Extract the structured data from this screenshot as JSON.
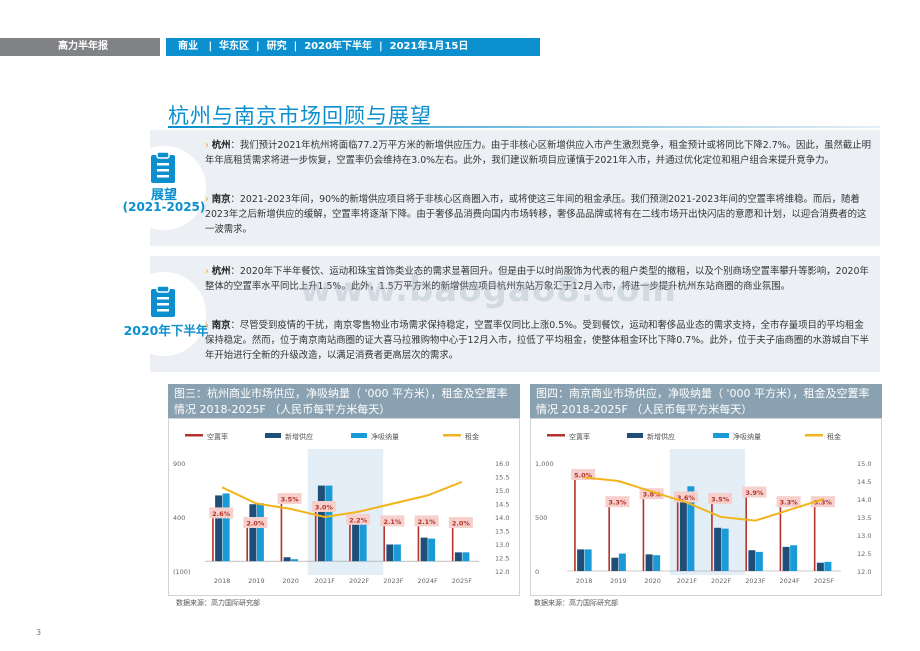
{
  "header": {
    "left": "高力半年报",
    "right": "商业   |  华东区  |  研究  |  2020年下半年  |  2021年1月15日"
  },
  "title": "杭州与南京市场回顾与展望",
  "outlook": {
    "label": "展望",
    "period": "(2021-2025)",
    "p1_city": "杭州",
    "p1_text": "：我们预计2021年杭州将面临77.2万平方米的新增供应压力。由于非核心区新增供应入市产生激烈竞争，租金预计或将同比下降2.7%。因此，虽然截止明年年底租赁需求将进一步恢复，空置率仍会维持在3.0%左右。此外，我们建议新项目应谨慎于2021年入市，并通过优化定位和租户组合来提升竞争力。",
    "p2_city": "南京",
    "p2_text": "：2021-2023年间，90%的新增供应项目将于非核心区商圈入市，或将使这三年间的租金承压。我们预测2021-2023年间的空置率将维稳。而后，随着2023年之后新增供应的缓解，空置率将逐渐下降。由于奢侈品消费向国内市场转移，奢侈品品牌或将有在二线市场开出快闪店的意愿和计划，以迎合消费者的这一波需求。"
  },
  "review": {
    "label": "2020年下半年",
    "p1_city": "杭州",
    "p1_text": "：2020年下半年餐饮、运动和珠宝首饰类业态的需求显著回升。但是由于以时尚服饰为代表的租户类型的撤租，以及个别商场空置率攀升等影响，2020年整体的空置率水平同比上升1.5%。此外，1.5万平方米的新增供应项目杭州东站万象汇于12月入市，将进一步提升杭州东站商圈的商业氛围。",
    "p2_city": "南京",
    "p2_text": "：尽管受到疫情的干扰，南京零售物业市场需求保持稳定，空置率仅同比上涨0.5%。受到餐饮，运动和奢侈品业态的需求支持，全市存量项目的平均租金保持稳定。然而，位于南京南站商圈的证大喜马拉雅购物中心于12月入市，拉低了平均租金，使整体租金环比下降0.7%。此外，位于夫子庙商圈的水游城自下半年开始进行全新的升级改造，以满足消费者更高层次的需求。"
  },
  "watermark": "www.baogao8.com",
  "legend": {
    "vacancy": "空置率",
    "new_supply": "新增供应",
    "net_absorption": "净吸纳量",
    "rent": "租金"
  },
  "colors": {
    "vacancy": "#b5312a",
    "new_supply": "#1f4e79",
    "net_absorption": "#1a9ad6",
    "rent": "#f2b41c",
    "accent": "#0b8fcf"
  },
  "source_note": "数据来源：高力国际研究部",
  "page_number": "3",
  "chart_data": [
    {
      "type": "bar",
      "title": "图三：杭州商业市场供应，净吸纳量（ '000 平方米），租金及空置率情况 2018-2025F （人民币每平方米每天）",
      "categories": [
        "2018",
        "2019",
        "2020",
        "2021F",
        "2022F",
        "2023F",
        "2024F",
        "2025F"
      ],
      "ylim": [
        -100,
        1000
      ],
      "y_ticks": [
        "(100)",
        "400",
        "900"
      ],
      "y2lim": [
        12.0,
        16.0
      ],
      "y2_ticks": [
        "12.0",
        "12.5",
        "13.0",
        "13.5",
        "14.0",
        "14.5",
        "15.0",
        "15.5",
        "16.0"
      ],
      "series": [
        {
          "name": "新增供应",
          "values": [
            670,
            580,
            40,
            770,
            480,
            170,
            240,
            90
          ]
        },
        {
          "name": "净吸纳量",
          "values": [
            690,
            590,
            20,
            770,
            460,
            170,
            230,
            90
          ]
        },
        {
          "name": "空置率",
          "values": [
            2.6,
            2.0,
            3.5,
            3.0,
            2.2,
            2.1,
            2.1,
            2.0
          ],
          "labels": [
            "2.6%",
            "2.0%",
            "3.5%",
            "3.0%",
            "2.2%",
            "2.1%",
            "2.1%",
            "2.0%"
          ]
        },
        {
          "name": "租金",
          "values": [
            15.1,
            14.5,
            14.3,
            14.0,
            14.2,
            14.5,
            14.8,
            15.3
          ]
        }
      ],
      "highlight": "2021F"
    },
    {
      "type": "bar",
      "title": "图四：南京商业市场供应，净吸纳量（ '000 平方米），租金及空置率情况 2018-2025F （人民币每平方米每天）",
      "categories": [
        "2018",
        "2019",
        "2020",
        "2021F",
        "2022F",
        "2023F",
        "2024F",
        "2025F"
      ],
      "ylim": [
        0,
        1300
      ],
      "y_ticks": [
        "0",
        "500",
        "1,000"
      ],
      "y2lim": [
        12.0,
        15.0
      ],
      "y2_ticks": [
        "12.0",
        "12.5",
        "13.0",
        "13.5",
        "14.0",
        "14.5",
        "15.0"
      ],
      "series": [
        {
          "name": "新增供应",
          "values": [
            260,
            160,
            200,
            830,
            520,
            250,
            290,
            100
          ]
        },
        {
          "name": "净吸纳量",
          "values": [
            260,
            210,
            190,
            1020,
            510,
            230,
            310,
            110
          ]
        },
        {
          "name": "空置率",
          "values": [
            5.0,
            3.3,
            3.8,
            3.6,
            3.5,
            3.9,
            3.3,
            3.3
          ],
          "labels": [
            "5.0%",
            "3.3%",
            "3.8%",
            "3.6%",
            "3.5%",
            "3.9%",
            "3.3%",
            "3.3%"
          ]
        },
        {
          "name": "租金",
          "values": [
            14.6,
            14.5,
            14.2,
            13.9,
            13.5,
            13.4,
            13.7,
            14.0
          ]
        }
      ],
      "highlight": "2021F"
    }
  ]
}
